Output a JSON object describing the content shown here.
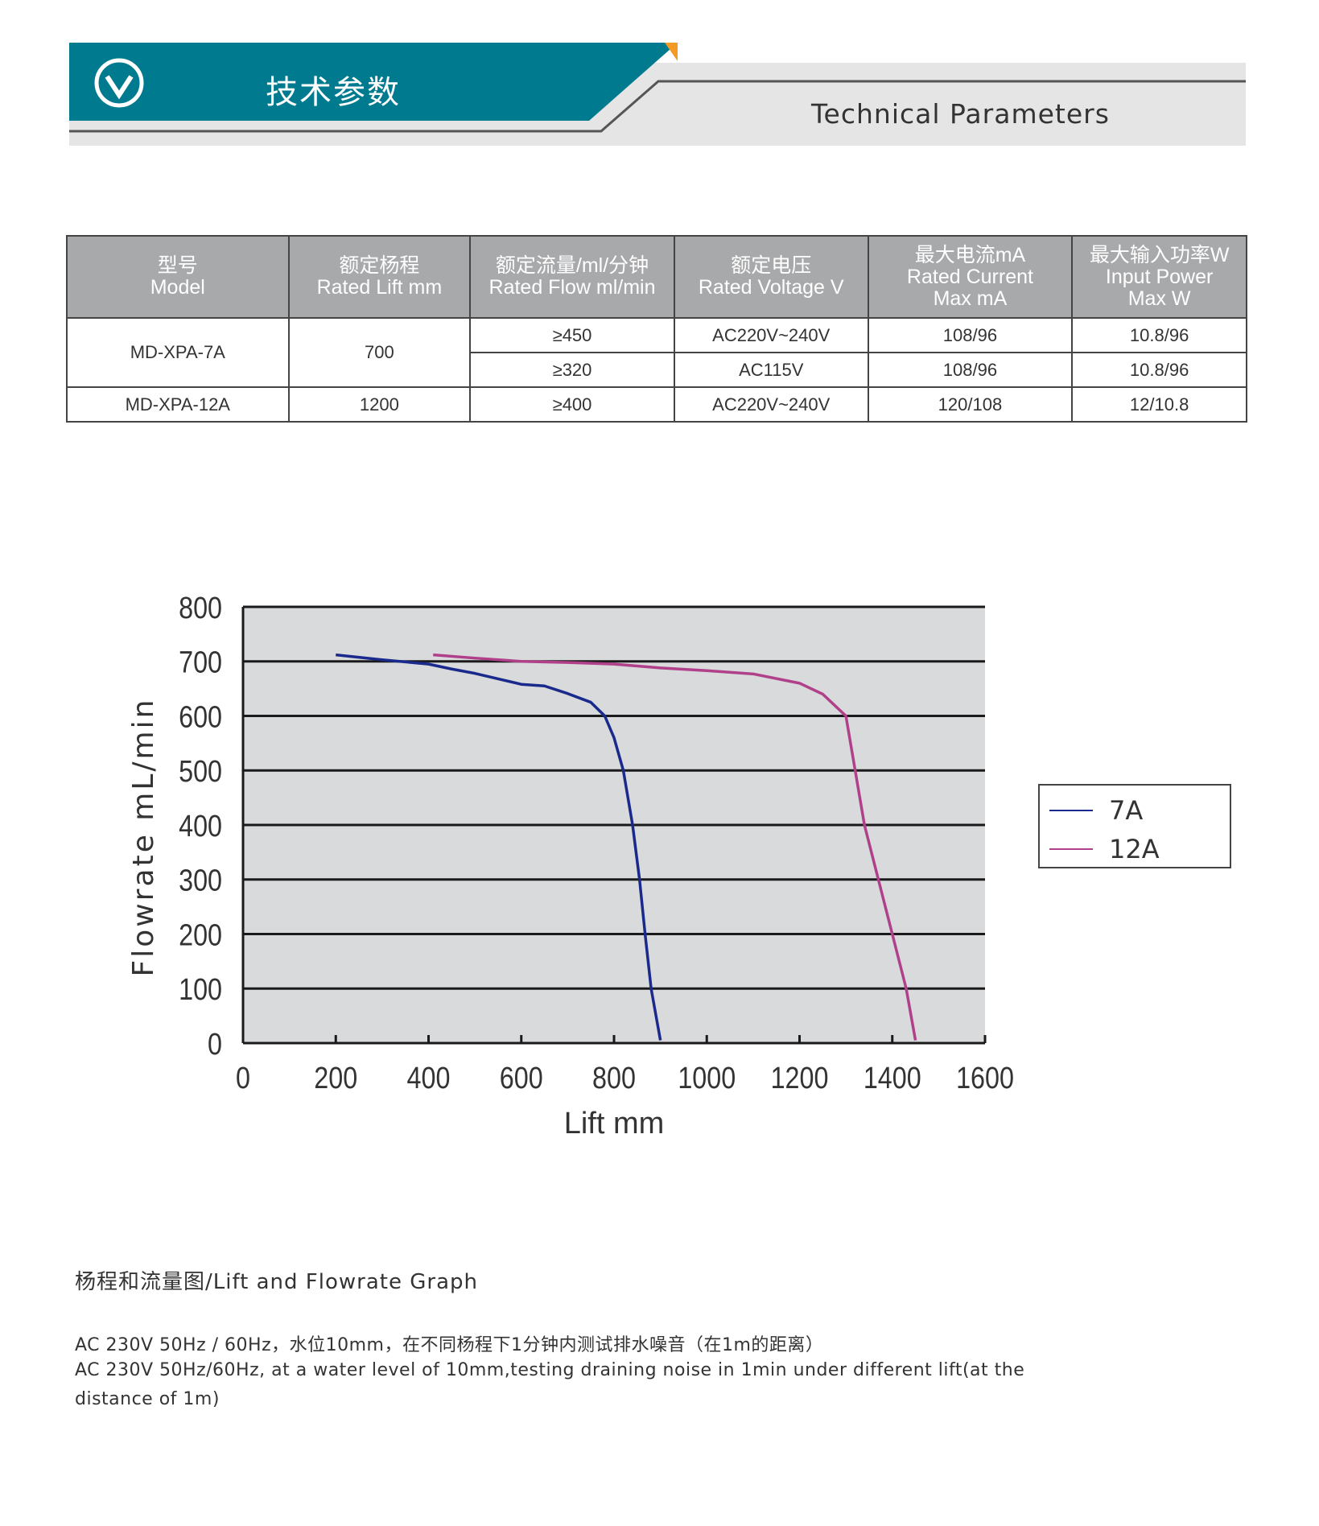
{
  "header": {
    "title_cn": "技术参数",
    "title_en": "Technical Parameters",
    "icon": "circle-chevron-down-icon",
    "brand_color": "#007a8f",
    "accent_color": "#f39a24"
  },
  "table": {
    "headers": [
      {
        "cn": "型号",
        "en": "Model"
      },
      {
        "cn": "额定杨程",
        "en": "Rated Lift mm"
      },
      {
        "cn": "额定流量/ml/分钟",
        "en": "Rated Flow ml/min"
      },
      {
        "cn": "额定电压",
        "en": "Rated Voltage V"
      },
      {
        "cn": "最大电流mA",
        "en": "Rated Current",
        "en2": "Max mA"
      },
      {
        "cn": "最大输入功率W",
        "en": "Input Power",
        "en2": "Max W"
      }
    ],
    "rows": [
      {
        "model": "MD-XPA-7A",
        "lift": "700",
        "sub": [
          {
            "flow": "≥450",
            "voltage": "AC220V~240V",
            "current": "108/96",
            "power": "10.8/96"
          },
          {
            "flow": "≥320",
            "voltage": "AC115V",
            "current": "108/96",
            "power": "10.8/96"
          }
        ]
      },
      {
        "model": "MD-XPA-12A",
        "lift": "1200",
        "sub": [
          {
            "flow": "≥400",
            "voltage": "AC220V~240V",
            "current": "120/108",
            "power": "12/10.8"
          }
        ]
      }
    ]
  },
  "chart_data": {
    "type": "line",
    "xlabel": "Lift mm",
    "ylabel": "Flowrate mL/min",
    "xlim": [
      0,
      1600
    ],
    "ylim": [
      0,
      800
    ],
    "xticks": [
      "0",
      "200",
      "400",
      "600",
      "800",
      "1000",
      "1200",
      "1400",
      "1600"
    ],
    "yticks": [
      "0",
      "100",
      "200",
      "300",
      "400",
      "500",
      "600",
      "700",
      "800"
    ],
    "grid": "horizontal",
    "legend_position": "right",
    "plot_background": "#d9dadc",
    "series": [
      {
        "name": "7A",
        "color": "#1a2a8c",
        "points": [
          [
            200,
            712
          ],
          [
            300,
            703
          ],
          [
            400,
            695
          ],
          [
            450,
            686
          ],
          [
            500,
            678
          ],
          [
            550,
            668
          ],
          [
            600,
            658
          ],
          [
            650,
            655
          ],
          [
            700,
            641
          ],
          [
            750,
            625
          ],
          [
            780,
            600
          ],
          [
            800,
            560
          ],
          [
            820,
            500
          ],
          [
            840,
            400
          ],
          [
            855,
            300
          ],
          [
            867,
            200
          ],
          [
            880,
            100
          ],
          [
            900,
            5
          ]
        ]
      },
      {
        "name": "12A",
        "color": "#b0408a",
        "points": [
          [
            410,
            712
          ],
          [
            500,
            706
          ],
          [
            600,
            700
          ],
          [
            700,
            698
          ],
          [
            800,
            695
          ],
          [
            900,
            688
          ],
          [
            1000,
            683
          ],
          [
            1100,
            677
          ],
          [
            1200,
            660
          ],
          [
            1250,
            640
          ],
          [
            1300,
            600
          ],
          [
            1320,
            500
          ],
          [
            1340,
            400
          ],
          [
            1370,
            300
          ],
          [
            1400,
            200
          ],
          [
            1430,
            100
          ],
          [
            1450,
            5
          ]
        ]
      }
    ]
  },
  "caption": "杨程和流量图/Lift and Flowrate Graph",
  "notes": [
    "AC 230V 50Hz / 60Hz，水位10mm，在不同杨程下1分钟内测试排水噪音（在1m的距离）",
    "AC 230V 50Hz/60Hz, at a water level of 10mm,testing draining noise in 1min under different lift(at the",
    "distance of 1m)"
  ]
}
